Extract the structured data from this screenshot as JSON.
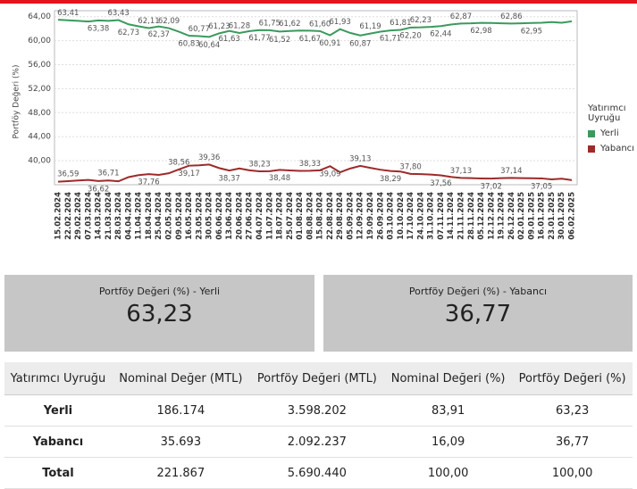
{
  "chart_data": {
    "type": "line",
    "y_label": "Portföy Değeri (%)",
    "legend_title": "Yatırımcı Uyruğu",
    "legend": "right",
    "grid": true,
    "x": [
      "15.02.2024",
      "22.02.2024",
      "29.02.2024",
      "07.03.2024",
      "14.03.2024",
      "21.03.2024",
      "28.03.2024",
      "04.04.2024",
      "11.04.2024",
      "18.04.2024",
      "25.04.2024",
      "02.05.2024",
      "09.05.2024",
      "16.05.2024",
      "23.05.2024",
      "30.05.2024",
      "06.06.2024",
      "13.06.2024",
      "20.06.2024",
      "27.06.2024",
      "04.07.2024",
      "11.07.2024",
      "18.07.2024",
      "25.07.2024",
      "01.08.2024",
      "08.08.2024",
      "15.08.2024",
      "22.08.2024",
      "29.08.2024",
      "05.09.2024",
      "12.09.2024",
      "19.09.2024",
      "26.09.2024",
      "03.10.2024",
      "10.10.2024",
      "17.10.2024",
      "24.10.2024",
      "31.10.2024",
      "07.11.2024",
      "14.11.2024",
      "21.11.2024",
      "28.11.2024",
      "05.12.2024",
      "12.12.2024",
      "19.12.2024",
      "26.12.2024",
      "02.01.2025",
      "09.01.2025",
      "16.01.2025",
      "23.01.2025",
      "30.01.2025",
      "06.02.2025"
    ],
    "ylim": [
      36,
      65
    ],
    "yticks": [
      {
        "value": 40,
        "label": "40,00"
      },
      {
        "value": 44,
        "label": "44,00"
      },
      {
        "value": 48,
        "label": "48,00"
      },
      {
        "value": 52,
        "label": "52,00"
      },
      {
        "value": 56,
        "label": "56,00"
      },
      {
        "value": 60,
        "label": "60,00"
      },
      {
        "value": 64,
        "label": "64,00"
      }
    ],
    "series": [
      {
        "name": "Yerli",
        "color": "#3a9a5c",
        "values": [
          63.5,
          63.41,
          63.3,
          63.2,
          63.38,
          63.3,
          63.43,
          62.73,
          62.4,
          62.11,
          62.37,
          62.09,
          61.5,
          60.83,
          60.77,
          60.64,
          61.23,
          61.63,
          61.28,
          61.6,
          61.77,
          61.75,
          61.52,
          61.62,
          61.7,
          61.67,
          61.6,
          60.91,
          61.93,
          61.3,
          60.87,
          61.19,
          61.5,
          61.71,
          61.81,
          62.2,
          62.23,
          62.3,
          62.44,
          62.7,
          62.87,
          62.9,
          62.98,
          62.95,
          62.9,
          62.86,
          62.9,
          62.95,
          63.0,
          63.1,
          63.0,
          63.23
        ],
        "value_labels": [
          null,
          "63,41",
          null,
          null,
          "63,38",
          null,
          "63,43",
          "62,73",
          null,
          "62,11",
          "62,37",
          "62,09",
          null,
          "60,83",
          "60,77",
          "60,64",
          "61,23",
          "61,63",
          "61,28",
          null,
          "61,77",
          "61,75",
          "61,52",
          "61,62",
          null,
          "61,67",
          "61,60",
          "60,91",
          "61,93",
          null,
          "60,87",
          "61,19",
          null,
          "61,71",
          "61,81",
          "62,20",
          "62,23",
          null,
          "62,44",
          null,
          "62,87",
          null,
          "62,98",
          null,
          null,
          "62,86",
          null,
          "62,95",
          null,
          null,
          null,
          null
        ]
      },
      {
        "name": "Yabancı",
        "color": "#9e2a2a",
        "values": [
          36.5,
          36.59,
          36.7,
          36.8,
          36.62,
          36.71,
          36.57,
          37.27,
          37.6,
          37.76,
          37.63,
          37.91,
          38.56,
          39.17,
          39.23,
          39.36,
          38.77,
          38.37,
          38.72,
          38.4,
          38.23,
          38.25,
          38.48,
          38.38,
          38.3,
          38.33,
          38.4,
          39.09,
          38.07,
          38.7,
          39.13,
          38.81,
          38.5,
          38.29,
          38.19,
          37.8,
          37.77,
          37.7,
          37.56,
          37.3,
          37.13,
          37.1,
          37.05,
          37.02,
          37.1,
          37.14,
          37.1,
          37.08,
          37.05,
          36.9,
          37.0,
          36.77
        ],
        "value_labels": [
          null,
          "36,59",
          null,
          null,
          "36,62",
          "36,71",
          null,
          null,
          null,
          "37,76",
          null,
          null,
          "38,56",
          "39,17",
          null,
          "39,36",
          null,
          "38,37",
          null,
          null,
          "38,23",
          null,
          "38,48",
          null,
          null,
          "38,33",
          null,
          "39,09",
          null,
          null,
          "39,13",
          null,
          null,
          "38,29",
          null,
          "37,80",
          null,
          null,
          "37,56",
          null,
          "37,13",
          null,
          null,
          "37,02",
          null,
          "37,14",
          null,
          null,
          "37,05",
          null,
          null,
          null
        ]
      }
    ]
  },
  "cards": [
    {
      "title": "Portföy Değeri (%) - Yerli",
      "value": "63,23"
    },
    {
      "title": "Portföy Değeri (%) - Yabancı",
      "value": "36,77"
    }
  ],
  "table": {
    "header": [
      "Yatırımcı Uyruğu",
      "Nominal Değer (MTL)",
      "Portföy Değeri (MTL)",
      "Nominal Değeri (%)",
      "Portföy Değeri (%)"
    ],
    "rows": [
      [
        "Yerli",
        "186.174",
        "3.598.202",
        "83,91",
        "63,23"
      ],
      [
        "Yabancı",
        "35.693",
        "2.092.237",
        "16,09",
        "36,77"
      ],
      [
        "Total",
        "221.867",
        "5.690.440",
        "100,00",
        "100,00"
      ]
    ]
  }
}
